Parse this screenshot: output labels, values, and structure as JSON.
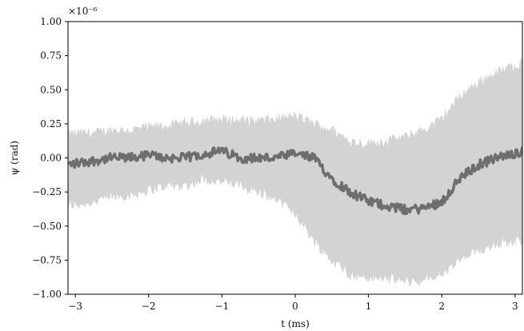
{
  "chart_data": {
    "type": "area",
    "title": "",
    "xlabel": "t (ms)",
    "ylabel": "ψ (rad)",
    "y_scale_label": "×10⁻⁶",
    "y_multiplier": 1e-06,
    "xlim": [
      -3.1,
      3.1
    ],
    "ylim": [
      -1.0,
      1.0
    ],
    "x_ticks": [
      -3,
      -2,
      -1,
      0,
      1,
      2,
      3
    ],
    "x_tick_labels": [
      "−3",
      "−2",
      "−1",
      "0",
      "1",
      "2",
      "3"
    ],
    "y_ticks": [
      -1.0,
      -0.75,
      -0.5,
      -0.25,
      0.0,
      0.25,
      0.5,
      0.75,
      1.0
    ],
    "y_tick_labels": [
      "−1.00",
      "−0.75",
      "−0.50",
      "−0.25",
      "0.00",
      "0.25",
      "0.50",
      "0.75",
      "1.00"
    ],
    "grid": false,
    "legend": "none",
    "colors": {
      "band": "#d3d3d3",
      "mean": "#6e6e6e"
    },
    "series": [
      {
        "x": [
          -3.1,
          -2.75,
          -2.5,
          -2.25,
          -2.0,
          -1.75,
          -1.5,
          -1.25,
          -1.0,
          -0.75,
          -0.5,
          -0.25,
          0.0,
          0.25,
          0.5,
          0.75,
          1.0,
          1.25,
          1.5,
          1.75,
          2.0,
          2.25,
          2.5,
          2.75,
          3.1
        ],
        "mean": [
          -0.05,
          -0.02,
          0.0,
          0.0,
          0.02,
          0.0,
          0.0,
          0.03,
          0.05,
          0.0,
          0.0,
          0.0,
          0.03,
          0.0,
          -0.15,
          -0.25,
          -0.32,
          -0.35,
          -0.38,
          -0.37,
          -0.32,
          -0.15,
          -0.05,
          0.0,
          0.05
        ],
        "upper": [
          0.17,
          0.18,
          0.2,
          0.2,
          0.22,
          0.23,
          0.25,
          0.27,
          0.28,
          0.27,
          0.27,
          0.28,
          0.3,
          0.25,
          0.2,
          0.12,
          0.1,
          0.12,
          0.15,
          0.2,
          0.28,
          0.45,
          0.55,
          0.62,
          0.7
        ],
        "lower": [
          -0.35,
          -0.32,
          -0.28,
          -0.27,
          -0.23,
          -0.2,
          -0.2,
          -0.15,
          -0.17,
          -0.2,
          -0.25,
          -0.3,
          -0.4,
          -0.6,
          -0.75,
          -0.85,
          -0.88,
          -0.88,
          -0.9,
          -0.9,
          -0.85,
          -0.75,
          -0.68,
          -0.62,
          -0.6
        ]
      }
    ]
  }
}
